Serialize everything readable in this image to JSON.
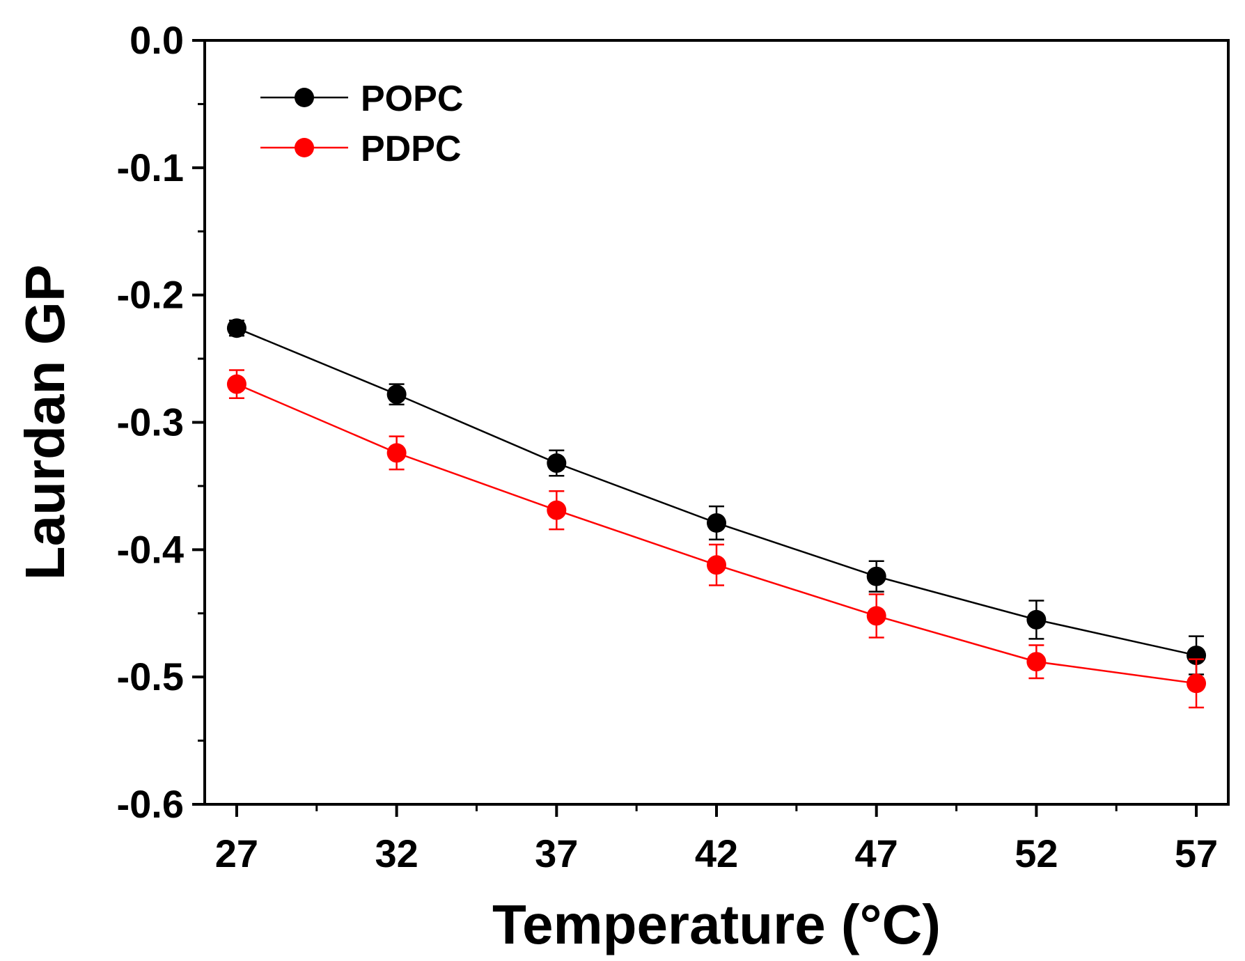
{
  "chart_data": {
    "type": "line",
    "title": "",
    "xlabel": "Temperature (°C)",
    "ylabel": "Laurdan GP",
    "x": [
      27,
      32,
      37,
      42,
      47,
      52,
      57
    ],
    "x_ticks": [
      "27",
      "32",
      "37",
      "42",
      "47",
      "52",
      "57"
    ],
    "y_ticks": [
      "0.0",
      "-0.1",
      "-0.2",
      "-0.3",
      "-0.4",
      "-0.5",
      "-0.6"
    ],
    "y_tick_values": [
      0.0,
      -0.1,
      -0.2,
      -0.3,
      -0.4,
      -0.5,
      -0.6
    ],
    "xlim": [
      26,
      58
    ],
    "ylim": [
      -0.6,
      0.0
    ],
    "grid": false,
    "legend_position": "top-left",
    "series": [
      {
        "name": "POPC",
        "color": "#000000",
        "values": [
          -0.226,
          -0.278,
          -0.332,
          -0.379,
          -0.421,
          -0.455,
          -0.483
        ],
        "errors": [
          0.006,
          0.008,
          0.01,
          0.013,
          0.012,
          0.015,
          0.015
        ]
      },
      {
        "name": "PDPC",
        "color": "#ff0000",
        "values": [
          -0.27,
          -0.324,
          -0.369,
          -0.412,
          -0.452,
          -0.488,
          -0.505
        ],
        "errors": [
          0.011,
          0.013,
          0.015,
          0.016,
          0.017,
          0.013,
          0.019
        ]
      }
    ]
  }
}
